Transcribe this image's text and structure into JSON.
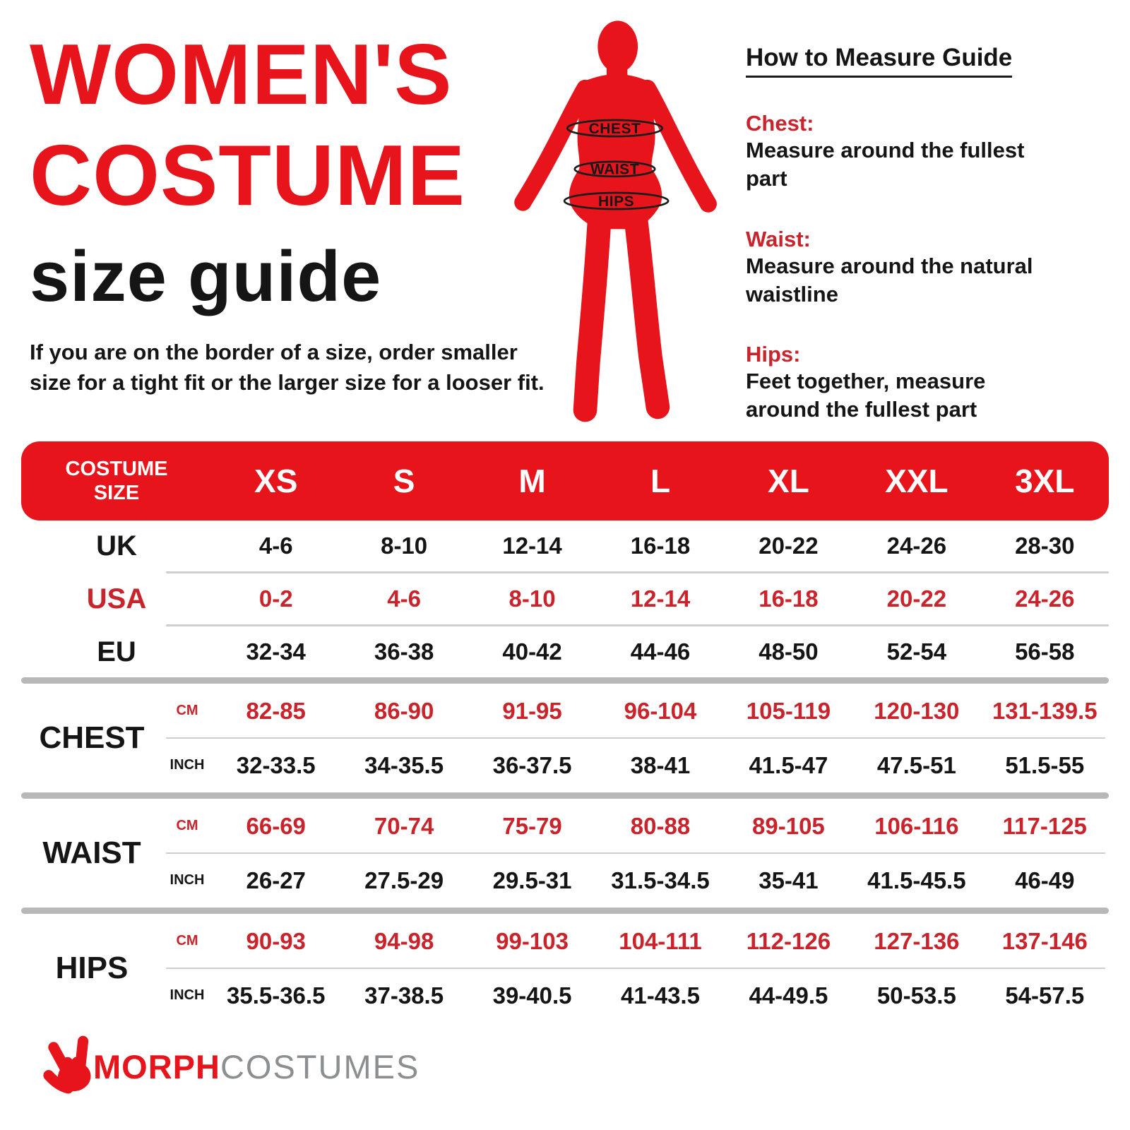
{
  "title": {
    "line1": "WOMEN'S",
    "line2": "COSTUME",
    "line3": "size guide"
  },
  "note": {
    "line1": "If you are on the border of a size, order smaller",
    "line2": "size for a tight fit or the larger size for a looser fit."
  },
  "figure": {
    "labels": [
      "CHEST",
      "WAIST",
      "HIPS"
    ]
  },
  "measure_guide": {
    "heading": "How to Measure Guide",
    "sections": [
      {
        "label": "Chest:",
        "text": "Measure around the fullest part"
      },
      {
        "label": "Waist:",
        "text": "Measure around the natural waistline"
      },
      {
        "label": "Hips:",
        "text": "Feet together, measure around the fullest part"
      }
    ]
  },
  "table": {
    "header": {
      "label": "COSTUME SIZE",
      "sizes": [
        "XS",
        "S",
        "M",
        "L",
        "XL",
        "XXL",
        "3XL"
      ]
    },
    "unit_cm": "CM",
    "unit_inch": "INCH",
    "rows": [
      {
        "label": "UK",
        "color": "black",
        "values": [
          "4-6",
          "8-10",
          "12-14",
          "16-18",
          "20-22",
          "24-26",
          "28-30"
        ]
      },
      {
        "label": "USA",
        "color": "red",
        "values": [
          "0-2",
          "4-6",
          "8-10",
          "12-14",
          "16-18",
          "20-22",
          "24-26"
        ]
      },
      {
        "label": "EU",
        "color": "black",
        "values": [
          "32-34",
          "36-38",
          "40-42",
          "44-46",
          "48-50",
          "52-54",
          "56-58"
        ]
      }
    ],
    "groups": [
      {
        "label": "CHEST",
        "cm": [
          "82-85",
          "86-90",
          "91-95",
          "96-104",
          "105-119",
          "120-130",
          "131-139.5"
        ],
        "inch": [
          "32-33.5",
          "34-35.5",
          "36-37.5",
          "38-41",
          "41.5-47",
          "47.5-51",
          "51.5-55"
        ]
      },
      {
        "label": "WAIST",
        "cm": [
          "66-69",
          "70-74",
          "75-79",
          "80-88",
          "89-105",
          "106-116",
          "117-125"
        ],
        "inch": [
          "26-27",
          "27.5-29",
          "29.5-31",
          "31.5-34.5",
          "35-41",
          "41.5-45.5",
          "46-49"
        ]
      },
      {
        "label": "HIPS",
        "cm": [
          "90-93",
          "94-98",
          "99-103",
          "104-111",
          "112-126",
          "127-136",
          "137-146"
        ],
        "inch": [
          "35.5-36.5",
          "37-38.5",
          "39-40.5",
          "41-43.5",
          "44-49.5",
          "50-53.5",
          "54-57.5"
        ]
      }
    ]
  },
  "logo": {
    "morph": "MORPH",
    "costumes": "COSTUMES"
  },
  "colors": {
    "red": "#e8141c",
    "data_red": "#c9242b",
    "black": "#151515",
    "gray_text": "#8c8f91",
    "divider_thin": "#cfcfcf",
    "divider_thick": "#b8b8b8"
  }
}
